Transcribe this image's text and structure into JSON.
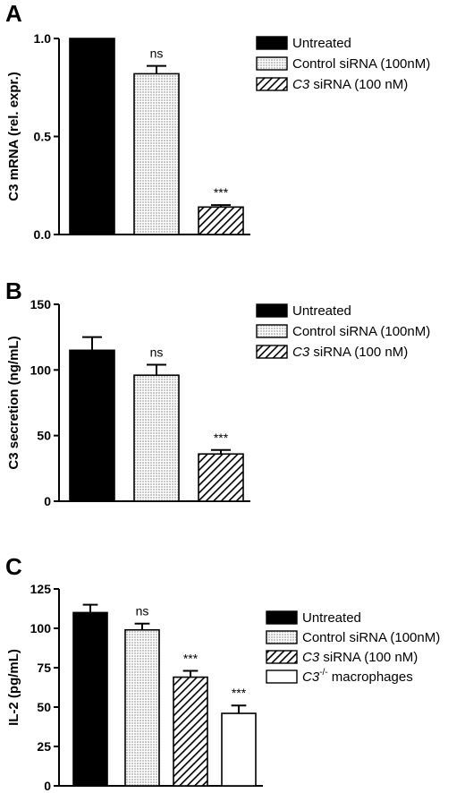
{
  "chart_data": [
    {
      "type": "bar",
      "panel_label": "A",
      "ylabel": "C3 mRNA (rel. expr.)",
      "ylim": [
        0,
        1.0
      ],
      "yticks": [
        "0.0",
        "0.5",
        "1.0"
      ],
      "ytick_values": [
        0,
        0.5,
        1.0
      ],
      "series": [
        {
          "name": "Untreated",
          "value": 1.0,
          "error": 0,
          "annotation": "",
          "fill": "solid"
        },
        {
          "name": "Control siRNA (100nM)",
          "value": 0.82,
          "error": 0.04,
          "annotation": "ns",
          "fill": "dotted"
        },
        {
          "name": "siRNA (100 nM)",
          "name_prefix_italic": "C3",
          "value": 0.14,
          "error": 0.01,
          "annotation": "***",
          "fill": "hatched"
        }
      ]
    },
    {
      "type": "bar",
      "panel_label": "B",
      "ylabel": "C3 secretion (ng/mL)",
      "ylim": [
        0,
        150
      ],
      "yticks": [
        "0",
        "50",
        "100",
        "150"
      ],
      "ytick_values": [
        0,
        50,
        100,
        150
      ],
      "series": [
        {
          "name": "Untreated",
          "value": 115,
          "error": 10,
          "annotation": "",
          "fill": "solid"
        },
        {
          "name": "Control siRNA (100nM)",
          "value": 96,
          "error": 8,
          "annotation": "ns",
          "fill": "dotted"
        },
        {
          "name": "siRNA (100 nM)",
          "name_prefix_italic": "C3",
          "value": 36,
          "error": 3,
          "annotation": "***",
          "fill": "hatched"
        }
      ]
    },
    {
      "type": "bar",
      "panel_label": "C",
      "ylabel": "IL-2 (pg/mL)",
      "ylim": [
        0,
        125
      ],
      "yticks": [
        "0",
        "25",
        "50",
        "75",
        "100",
        "125"
      ],
      "ytick_values": [
        0,
        25,
        50,
        75,
        100,
        125
      ],
      "series": [
        {
          "name": "Untreated",
          "value": 110,
          "error": 5,
          "annotation": "",
          "fill": "solid"
        },
        {
          "name": "Control siRNA (100nM)",
          "value": 99,
          "error": 4,
          "annotation": "ns",
          "fill": "dotted"
        },
        {
          "name": "siRNA (100 nM)",
          "name_prefix_italic": "C3",
          "value": 69,
          "error": 4,
          "annotation": "***",
          "fill": "hatched"
        },
        {
          "name": "macrophages",
          "name_prefix_italic": "C3",
          "name_superscript": "-/-",
          "value": 46,
          "error": 5,
          "annotation": "***",
          "fill": "open"
        }
      ]
    }
  ]
}
